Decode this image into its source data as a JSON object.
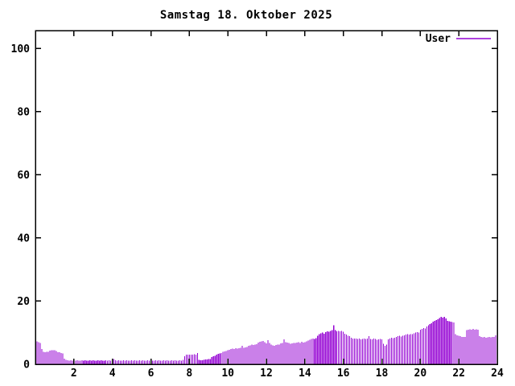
{
  "window": {
    "background": "#ffffff"
  },
  "title": "Samstag 18. Oktober 2025",
  "legend": {
    "label": "User",
    "position": "top-right-inside"
  },
  "colors": {
    "bar": "#9400D3",
    "axis": "#000000",
    "text": "#000000",
    "background": "#ffffff"
  },
  "chart_data": {
    "type": "bar",
    "title": "Samstag 18. Oktober 2025",
    "xlabel": "",
    "ylabel": "",
    "x_unit": "hour_of_day",
    "xlim": [
      0,
      24
    ],
    "ylim": [
      0,
      105.7
    ],
    "x_ticks": [
      2,
      4,
      6,
      8,
      10,
      12,
      14,
      16,
      18,
      20,
      22,
      24
    ],
    "y_ticks": [
      0,
      20,
      40,
      60,
      80,
      100
    ],
    "grid": false,
    "legend_position": "top-right-inside",
    "series": [
      {
        "name": "User",
        "color": "#9400D3",
        "style": "impulses",
        "start_minutes": 5,
        "interval_minutes": 5,
        "values": [
          7.2,
          7.0,
          6.8,
          4.8,
          4.0,
          3.8,
          3.9,
          4.0,
          4.3,
          4.5,
          4.5,
          4.4,
          4.2,
          3.8,
          3.8,
          3.6,
          3.4,
          1.8,
          1.4,
          1.3,
          1.2,
          1.3,
          1.2,
          1.3,
          1.2,
          1.3,
          1.2,
          1.2,
          1.3,
          1.2,
          1.3,
          1.2,
          1.2,
          1.3,
          1.2,
          1.3,
          1.2,
          1.2,
          1.3,
          1.2,
          1.3,
          1.2,
          1.2,
          1.3,
          1.2,
          1.3,
          1.2,
          1.2,
          1.6,
          1.3,
          1.2,
          1.3,
          1.2,
          1.2,
          1.3,
          1.2,
          1.3,
          1.2,
          1.2,
          1.3,
          1.2,
          1.3,
          1.2,
          1.2,
          1.3,
          1.2,
          1.3,
          1.2,
          1.2,
          1.3,
          1.2,
          1.3,
          1.2,
          1.2,
          1.3,
          1.2,
          1.3,
          1.2,
          1.2,
          1.3,
          1.2,
          1.3,
          1.2,
          1.2,
          1.3,
          1.2,
          1.3,
          1.2,
          1.2,
          1.3,
          1.2,
          1.4,
          2.5,
          3.0,
          3.1,
          3.0,
          3.1,
          3.0,
          3.2,
          3.1,
          3.6,
          1.4,
          1.3,
          1.3,
          1.4,
          1.5,
          1.5,
          1.6,
          1.7,
          2.3,
          2.5,
          2.7,
          3.1,
          3.3,
          3.4,
          3.6,
          4.0,
          4.1,
          4.2,
          4.4,
          4.6,
          4.8,
          5.0,
          4.9,
          5.1,
          5.0,
          5.1,
          5.2,
          5.9,
          5.2,
          5.3,
          5.5,
          5.9,
          6.0,
          6.2,
          6.1,
          6.3,
          6.4,
          6.9,
          7.1,
          7.2,
          7.4,
          7.0,
          6.6,
          7.6,
          6.8,
          6.2,
          6.0,
          5.9,
          6.1,
          6.3,
          6.2,
          6.6,
          6.8,
          7.9,
          7.0,
          6.9,
          6.8,
          6.5,
          6.6,
          6.8,
          6.7,
          6.9,
          7.0,
          6.8,
          7.1,
          6.9,
          7.0,
          7.2,
          7.5,
          7.8,
          8.0,
          8.2,
          8.0,
          8.3,
          9.0,
          9.5,
          9.8,
          10.0,
          9.7,
          10.2,
          10.5,
          10.3,
          10.6,
          10.8,
          12.3,
          10.8,
          10.5,
          10.6,
          10.4,
          10.6,
          10.3,
          9.7,
          9.4,
          9.0,
          8.9,
          8.4,
          8.2,
          8.1,
          8.2,
          8.0,
          8.1,
          7.9,
          8.0,
          8.2,
          8.0,
          8.1,
          8.9,
          8.0,
          7.9,
          8.1,
          8.0,
          7.8,
          7.9,
          8.0,
          7.9,
          6.5,
          5.9,
          6.3,
          7.9,
          8.2,
          8.4,
          8.3,
          8.4,
          8.7,
          8.9,
          9.0,
          8.8,
          9.0,
          9.2,
          9.4,
          9.5,
          9.4,
          9.6,
          9.6,
          9.8,
          10.0,
          10.2,
          10.0,
          10.9,
          11.2,
          11.5,
          11.3,
          12.0,
          12.4,
          12.7,
          13.0,
          13.5,
          13.8,
          14.0,
          14.3,
          14.6,
          15.0,
          14.8,
          15.0,
          14.5,
          13.8,
          13.6,
          13.5,
          13.4,
          13.3,
          9.5,
          9.2,
          9.0,
          8.9,
          8.7,
          8.6,
          8.7,
          10.8,
          11.0,
          11.1,
          11.0,
          11.2,
          11.0,
          11.1,
          10.9,
          8.9,
          8.6,
          8.5,
          8.6,
          8.4,
          8.5,
          8.6,
          8.5,
          8.7,
          8.6,
          9.2
        ]
      }
    ]
  }
}
